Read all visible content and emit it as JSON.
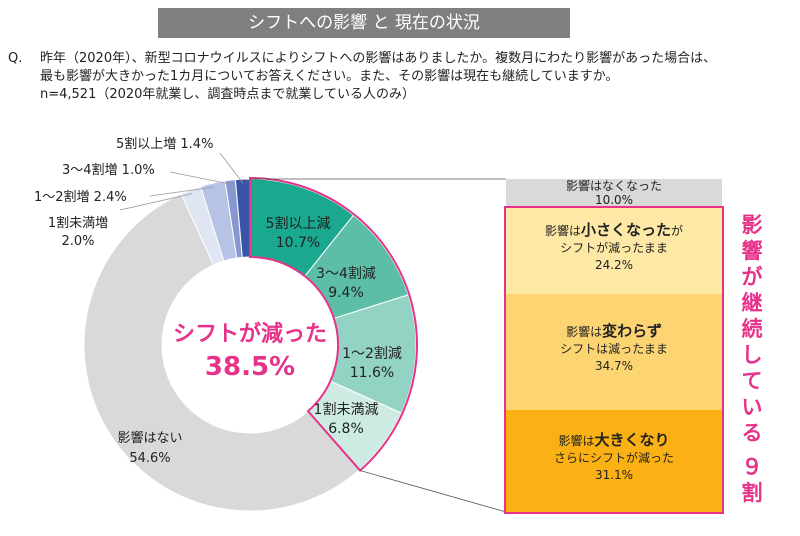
{
  "header": {
    "title": "シフトへの影響 と 現在の状況"
  },
  "question": {
    "marker": "Q.",
    "lines": [
      "昨年（2020年）、新型コロナウイルスによりシフトへの影響はありましたか。複数月にわたり影響があった場合は、",
      "最も影響が大きかった1カ月についてお答えください。また、その影響は現在も継続していますか。",
      "n=4,521（2020年就業し、調査時点まで就業している人のみ）"
    ]
  },
  "chart_data": {
    "type": "pie",
    "variant": "donut",
    "slices": [
      {
        "label": "5割以上減",
        "value": 10.7,
        "color": "#1aa88e"
      },
      {
        "label": "3～4割減",
        "value": 9.4,
        "color": "#5dbea8"
      },
      {
        "label": "1～2割減",
        "value": 11.6,
        "color": "#93d3c3"
      },
      {
        "label": "1割未満減",
        "value": 6.8,
        "color": "#cdebe3"
      },
      {
        "label": "影響はない",
        "value": 54.6,
        "color": "#d9d9d9"
      },
      {
        "label": "1割未満増",
        "value": 2.0,
        "color": "#dfe5f3"
      },
      {
        "label": "1～2割増",
        "value": 2.4,
        "color": "#b6c3e4"
      },
      {
        "label": "3～4割増",
        "value": 1.0,
        "color": "#8598cf"
      },
      {
        "label": "5割以上増",
        "value": 1.4,
        "color": "#3a54a7"
      }
    ],
    "center": {
      "label": "シフトが減った",
      "value": "38.5%"
    },
    "breakdown": [
      {
        "label": "影響はなくなった",
        "value": "10.0%",
        "color": "#d9d9d9"
      },
      {
        "pre": "影響は",
        "bold": "小さくなった",
        "post": "が",
        "sub": "シフトが減ったまま",
        "value": "24.2%",
        "color": "#fde9a5"
      },
      {
        "pre": "影響は",
        "bold": "変わらず",
        "post": "",
        "sub": "シフトは減ったまま",
        "value": "34.7%",
        "color": "#fdd472"
      },
      {
        "pre": "影響は",
        "bold": "大きくなり",
        "post": "",
        "sub": "さらにシフトが減った",
        "value": "31.1%",
        "color": "#fbb114"
      }
    ],
    "breakdown_caption": "影響が継続している９割"
  },
  "accent": "#e6338a"
}
